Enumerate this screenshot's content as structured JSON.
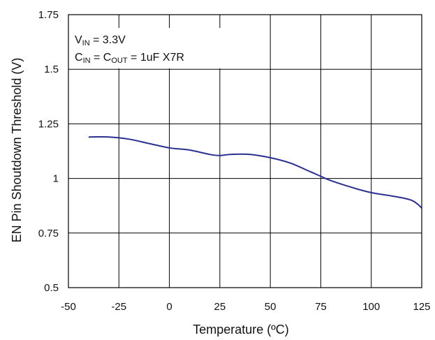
{
  "chart_data": {
    "type": "line",
    "title": "",
    "xlabel": "Temperature (ºC)",
    "ylabel": "EN Pin Shoutdown Threshold (V)",
    "xlim": [
      -50,
      125
    ],
    "ylim": [
      0.5,
      1.75
    ],
    "x_ticks": [
      -50,
      -25,
      0,
      25,
      50,
      75,
      100,
      125
    ],
    "x_tick_labels": [
      "-50",
      "-25",
      "0",
      "25",
      "50",
      "75",
      "100",
      "125"
    ],
    "y_ticks": [
      0.5,
      0.75,
      1,
      1.25,
      1.5,
      1.75
    ],
    "y_tick_labels": [
      "0.5",
      "0.75",
      "1",
      "1.25",
      "1.5",
      "1.75"
    ],
    "grid": true,
    "legend": "none",
    "line_color": "#2b2f8f",
    "annotations": {
      "line1": {
        "main": "V",
        "sub": "IN",
        "rest": " = 3.3V"
      },
      "line2": {
        "main1": "C",
        "sub1": "IN",
        "mid": " = C",
        "sub2": "OUT",
        "rest": " = 1uF X7R"
      }
    },
    "series": [
      {
        "x": [
          -40,
          -30,
          -20,
          -10,
          0,
          10,
          20,
          25,
          30,
          40,
          50,
          60,
          70,
          75,
          80,
          90,
          100,
          110,
          120,
          125
        ],
        "values": [
          1.19,
          1.19,
          1.18,
          1.16,
          1.14,
          1.13,
          1.11,
          1.105,
          1.11,
          1.11,
          1.095,
          1.07,
          1.03,
          1.01,
          0.99,
          0.96,
          0.935,
          0.92,
          0.9,
          0.865
        ]
      }
    ]
  }
}
